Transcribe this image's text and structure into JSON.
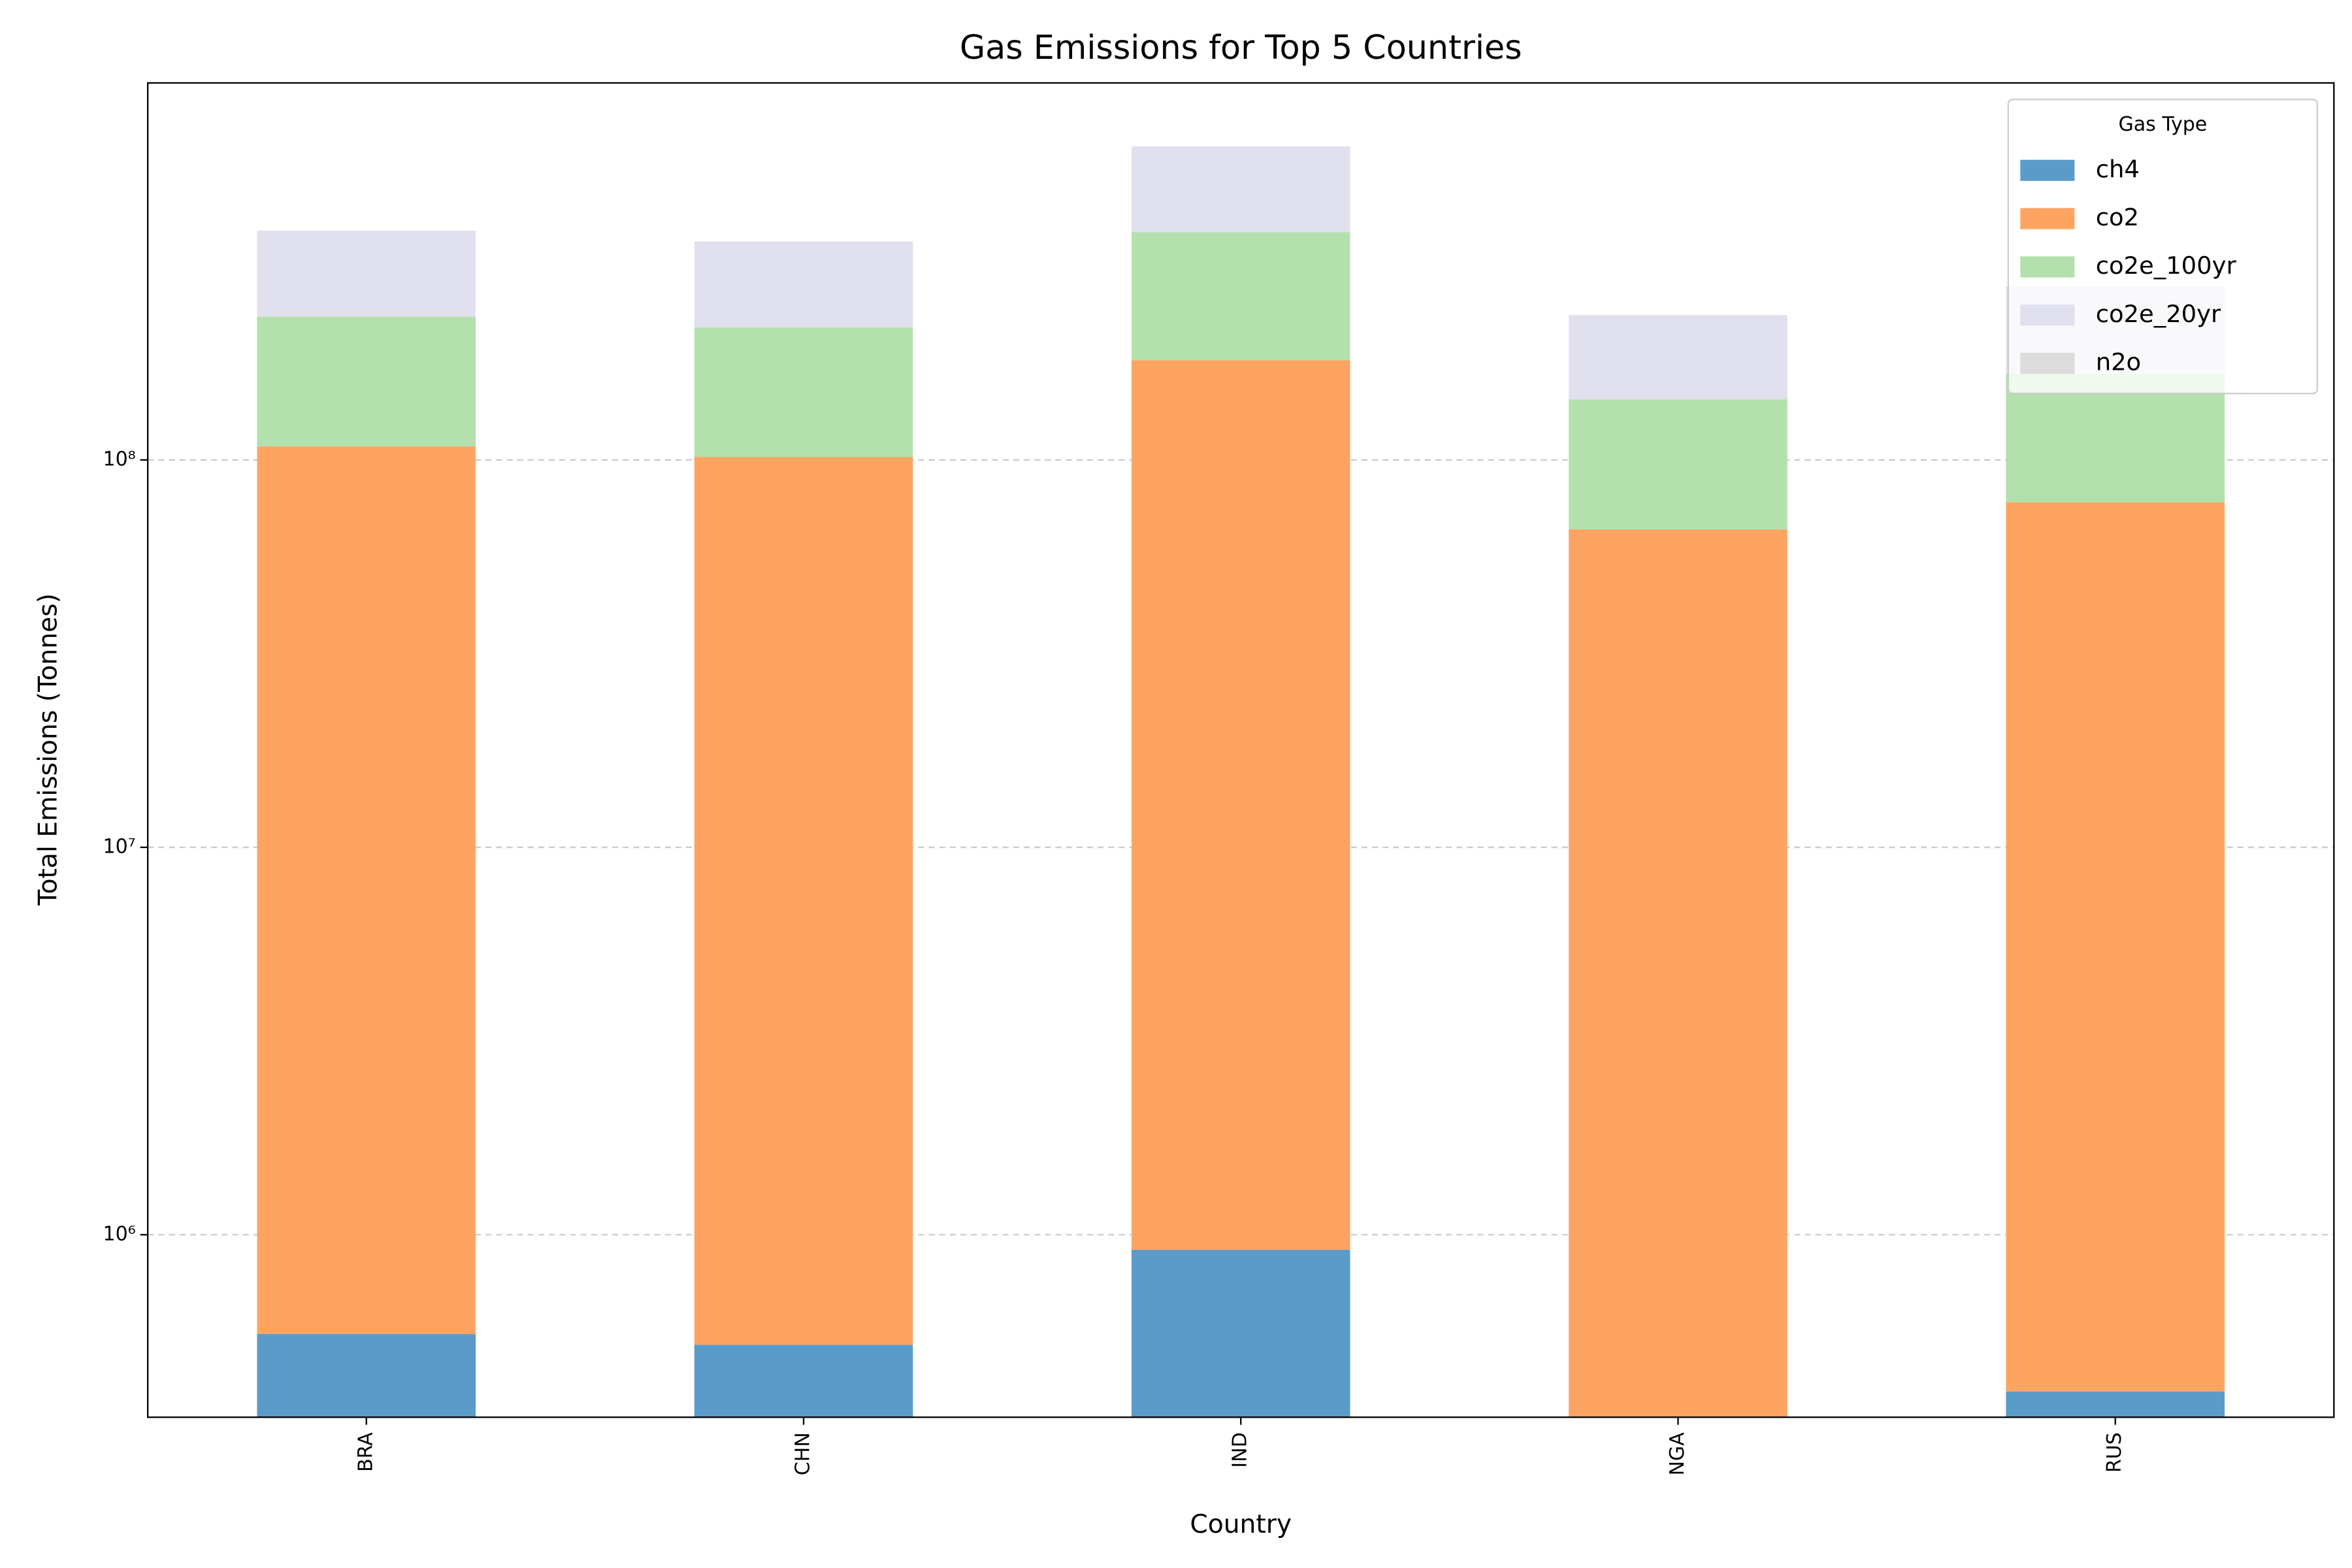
{
  "chart_data": {
    "type": "stacked_bar",
    "title": "Gas Emissions for Top 5 Countries",
    "x_label": "Country",
    "y_label": "Total Emissions (Tonnes)",
    "categories": [
      "BRA",
      "CHN",
      "IND",
      "NGA",
      "RUS"
    ],
    "series": [
      {
        "name": "ch4",
        "color": "#5b9bc9",
        "values": [
          554000,
          520000,
          915000,
          200000,
          394000
        ]
      },
      {
        "name": "co2",
        "color": "#fda463",
        "values": [
          107800000,
          101300000,
          180000000,
          66000000,
          77400000
        ]
      },
      {
        "name": "co2e_100yr",
        "color": "#b3e0ac",
        "values": [
          126000000,
          118000000,
          206000000,
          77000000,
          89000000
        ]
      },
      {
        "name": "co2e_20yr",
        "color": "#e0e0ef",
        "values": [
          156000000,
          146000000,
          257000000,
          93000000,
          113000000
        ]
      },
      {
        "name": "n2o",
        "color": "#dcdcdc",
        "values": [
          500000,
          450000,
          700000,
          300000,
          350000
        ]
      }
    ],
    "log_scale": true,
    "ylim": [
      338000,
      940000000
    ],
    "yticks": [
      {
        "value": 1000000,
        "label": "10⁶"
      },
      {
        "value": 10000000,
        "label": "10⁷"
      },
      {
        "value": 100000000,
        "label": "10⁸"
      }
    ],
    "grid": true,
    "legend_title": "Gas Type",
    "legend_position": "upper-right"
  }
}
